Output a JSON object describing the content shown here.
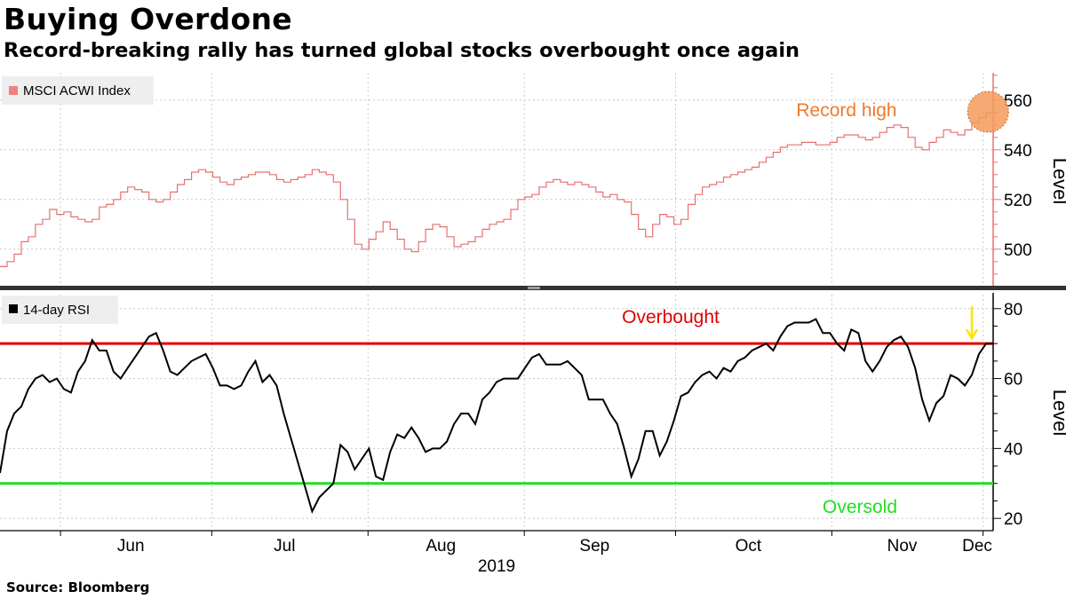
{
  "header": {
    "title": "Buying Overdone",
    "subtitle": "Record-breaking rally has turned global stocks overbought once again"
  },
  "footer": {
    "source": "Source: Bloomberg"
  },
  "colors": {
    "index_line": "#e8706e",
    "legend_index": "#f28080",
    "rsi_line": "#000000",
    "overbought": "#e00000",
    "oversold": "#22dd22",
    "record_marker": "#f59a5a",
    "record_text": "#f07a2a",
    "arrow": "#ffe400",
    "grid": "#c8c8c8"
  },
  "chart_data": [
    {
      "type": "line",
      "style": "step",
      "legend": "MSCI ACWI Index",
      "ylabel": "Level",
      "yticks": [
        500,
        520,
        540,
        560
      ],
      "ylim": [
        486,
        571
      ],
      "annotation": {
        "text": "Record high",
        "x": "2019-12-02",
        "y": 556
      },
      "x_start": "2019-05-20",
      "x_end": "2019-12-03",
      "values": [
        493,
        495,
        498,
        503,
        505,
        510,
        512,
        516,
        514,
        515,
        513,
        512,
        511,
        512,
        517,
        518,
        520,
        523,
        525,
        524,
        523,
        520,
        519,
        520,
        523,
        526,
        528,
        531,
        532,
        531,
        529,
        527,
        526,
        528,
        529,
        530,
        531,
        531,
        530,
        528,
        527,
        528,
        529,
        530,
        532,
        531,
        530,
        527,
        520,
        512,
        502,
        500,
        504,
        507,
        511,
        508,
        504,
        500,
        499,
        503,
        508,
        510,
        509,
        505,
        501,
        502,
        503,
        505,
        508,
        510,
        511,
        512,
        516,
        520,
        521,
        522,
        525,
        527,
        528,
        527,
        526,
        527,
        526,
        525,
        523,
        521,
        522,
        520,
        519,
        514,
        508,
        505,
        510,
        514,
        513,
        510,
        512,
        518,
        522,
        525,
        526,
        527,
        529,
        530,
        531,
        532,
        533,
        535,
        537,
        539,
        541,
        542,
        542,
        543,
        543,
        542,
        542,
        543,
        545,
        546,
        546,
        545,
        544,
        545,
        547,
        549,
        550,
        549,
        545,
        541,
        540,
        543,
        545,
        548,
        547,
        546,
        548,
        551,
        553,
        555,
        556
      ]
    },
    {
      "type": "line",
      "legend": "14-day RSI",
      "ylabel": "Level",
      "yticks": [
        20,
        40,
        60,
        80
      ],
      "ylim": [
        17,
        84
      ],
      "reference_lines": [
        {
          "label": "Overbought",
          "y": 70
        },
        {
          "label": "Oversold",
          "y": 30
        }
      ],
      "x_start": "2019-05-20",
      "x_end": "2019-12-03",
      "values": [
        33,
        45,
        50,
        52,
        57,
        60,
        61,
        59,
        60,
        57,
        56,
        62,
        65,
        71,
        68,
        68,
        62,
        60,
        63,
        66,
        69,
        72,
        73,
        68,
        62,
        61,
        63,
        65,
        66,
        67,
        63,
        58,
        58,
        57,
        58,
        62,
        65,
        59,
        61,
        58,
        50,
        43,
        36,
        29,
        22,
        26,
        28,
        30,
        41,
        39,
        34,
        37,
        40,
        32,
        31,
        39,
        44,
        43,
        46,
        43,
        39,
        40,
        40,
        42,
        47,
        50,
        50,
        47,
        54,
        56,
        59,
        60,
        60,
        60,
        63,
        66,
        67,
        64,
        64,
        64,
        65,
        63,
        61,
        54,
        54,
        54,
        50,
        47,
        40,
        32,
        37,
        45,
        45,
        38,
        42,
        48,
        55,
        56,
        59,
        61,
        62,
        60,
        63,
        62,
        65,
        66,
        68,
        69,
        70,
        68,
        72,
        75,
        76,
        76,
        76,
        77,
        73,
        73,
        70,
        68,
        74,
        73,
        65,
        62,
        65,
        69,
        71,
        72,
        69,
        63,
        54,
        48,
        53,
        55,
        61,
        60,
        58,
        61,
        67,
        70,
        70
      ]
    }
  ],
  "x_axis": {
    "months": [
      {
        "label": "Jun",
        "date": "2019-06-01"
      },
      {
        "label": "Jul",
        "date": "2019-07-01"
      },
      {
        "label": "Aug",
        "date": "2019-08-01"
      },
      {
        "label": "Sep",
        "date": "2019-09-01"
      },
      {
        "label": "Oct",
        "date": "2019-10-01"
      },
      {
        "label": "Nov",
        "date": "2019-11-01"
      },
      {
        "label": "Dec",
        "date": "2019-12-01"
      }
    ],
    "year": "2019"
  }
}
